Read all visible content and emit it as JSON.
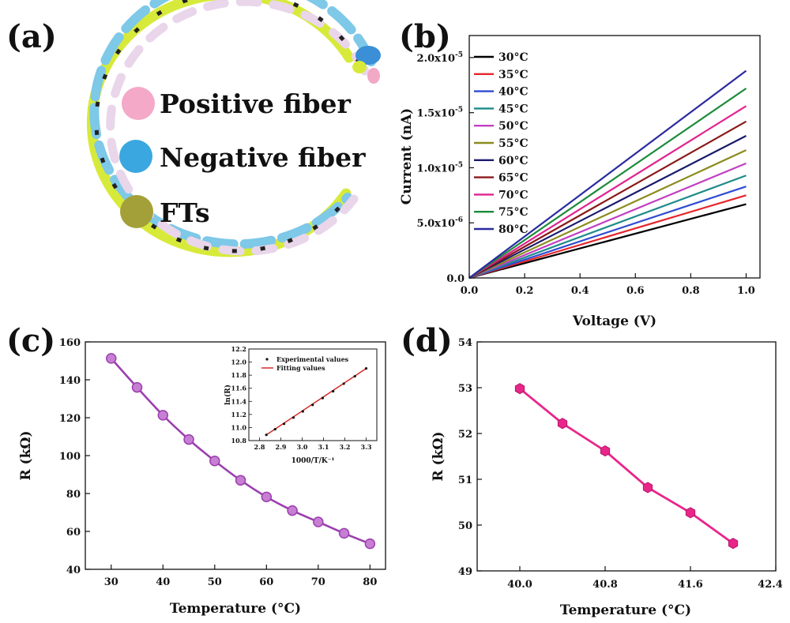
{
  "panel_labels": {
    "a": "(a)",
    "b": "(b)",
    "c": "(c)",
    "d": "(d)"
  },
  "illustration": {
    "legend": [
      {
        "label": "Positive fiber",
        "color": "#ea4f9c",
        "dot": "#f4a9c8"
      },
      {
        "label": "Negative fiber",
        "color": "#6a5fb0",
        "dot": "#3aa7e0"
      },
      {
        "label": "FTs",
        "color": "#c9d62e",
        "dot": "#a4a039"
      }
    ],
    "fiber_colors": {
      "positive": "#e9d6ea",
      "negative": "#7ec8e8",
      "fts": "#d7ea3a"
    }
  },
  "chart_data": [
    {
      "id": "b",
      "type": "line",
      "xlabel": "Voltage (V)",
      "ylabel": "Current (nA)",
      "xlim": [
        0,
        1.05
      ],
      "ylim": [
        0,
        2.2e-05
      ],
      "xticks": [
        0.0,
        0.2,
        0.4,
        0.6,
        0.8,
        1.0
      ],
      "xtick_labels": [
        "0.0",
        "0.2",
        "0.4",
        "0.6",
        "0.8",
        "1.0"
      ],
      "yticks": [
        0,
        5e-06,
        1e-05,
        1.5e-05,
        2e-05
      ],
      "ytick_labels": [
        {
          "m": "0.0",
          "e": ""
        },
        {
          "m": "5.0x10",
          "e": "-6"
        },
        {
          "m": "1.0x10",
          "e": "-5"
        },
        {
          "m": "1.5x10",
          "e": "-5"
        },
        {
          "m": "2.0x10",
          "e": "-5"
        }
      ],
      "legend_position": "top-left",
      "x": [
        0,
        1.0
      ],
      "series": [
        {
          "name": "30°C",
          "color": "#000000",
          "values": [
            0,
            6.7e-06
          ]
        },
        {
          "name": "35°C",
          "color": "#e5262a",
          "values": [
            0,
            7.5e-06
          ]
        },
        {
          "name": "40°C",
          "color": "#2f4bd1",
          "values": [
            0,
            8.3e-06
          ]
        },
        {
          "name": "45°C",
          "color": "#1e8b8b",
          "values": [
            0,
            9.3e-06
          ]
        },
        {
          "name": "50°C",
          "color": "#c13fc2",
          "values": [
            0,
            1.04e-05
          ]
        },
        {
          "name": "55°C",
          "color": "#8b8b1e",
          "values": [
            0,
            1.16e-05
          ]
        },
        {
          "name": "60°C",
          "color": "#1a1a6e",
          "values": [
            0,
            1.29e-05
          ]
        },
        {
          "name": "65°C",
          "color": "#8b1a1a",
          "values": [
            0,
            1.42e-05
          ]
        },
        {
          "name": "70°C",
          "color": "#e0238f",
          "values": [
            0,
            1.56e-05
          ]
        },
        {
          "name": "75°C",
          "color": "#1a8b3a",
          "values": [
            0,
            1.72e-05
          ]
        },
        {
          "name": "80°C",
          "color": "#2a2aa0",
          "values": [
            0,
            1.88e-05
          ]
        }
      ]
    },
    {
      "id": "c",
      "type": "line",
      "xlabel": "Temperature (°C)",
      "ylabel": "R (kΩ)",
      "xlim": [
        25,
        83
      ],
      "ylim": [
        40,
        160
      ],
      "xticks": [
        30,
        40,
        50,
        60,
        70,
        80
      ],
      "yticks": [
        40,
        60,
        80,
        100,
        120,
        140,
        160
      ],
      "color": "#9b3fae",
      "marker_color": "#c77fd4",
      "x": [
        30,
        35,
        40,
        45,
        50,
        55,
        60,
        65,
        70,
        75,
        80
      ],
      "values": [
        151.3,
        136.0,
        121.3,
        108.5,
        97.2,
        87.0,
        78.2,
        71.0,
        65.0,
        59.0,
        53.5
      ],
      "inset": {
        "type": "scatter",
        "xlabel": "1000/T/K⁻¹",
        "ylabel": "ln(R)",
        "xlim": [
          2.75,
          3.35
        ],
        "ylim": [
          10.8,
          12.2
        ],
        "xticks": [
          2.8,
          2.9,
          3.0,
          3.1,
          3.2,
          3.3
        ],
        "yticks": [
          10.8,
          11.0,
          11.2,
          11.4,
          11.6,
          11.8,
          12.0,
          12.2
        ],
        "legend": [
          "Experimental values",
          "Fitting values"
        ],
        "fit_color": "#d42a2a",
        "x": [
          2.832,
          2.873,
          2.915,
          2.959,
          3.003,
          3.049,
          3.096,
          3.145,
          3.195,
          3.247,
          3.3
        ],
        "values": [
          10.888,
          10.974,
          11.056,
          11.152,
          11.247,
          11.346,
          11.45,
          11.554,
          11.67,
          11.783,
          11.903
        ]
      }
    },
    {
      "id": "d",
      "type": "line",
      "xlabel": "Temperature (°C)",
      "ylabel": "R (kΩ)",
      "xlim": [
        39.6,
        42.4
      ],
      "ylim": [
        49,
        54
      ],
      "xticks": [
        40.0,
        40.8,
        41.6,
        42.4
      ],
      "xtick_labels": [
        "40.0",
        "40.8",
        "41.6",
        "42.4"
      ],
      "yticks": [
        49,
        50,
        51,
        52,
        53,
        54
      ],
      "color": "#e8268a",
      "x": [
        40.0,
        40.4,
        40.8,
        41.2,
        41.6,
        42.0
      ],
      "values": [
        52.98,
        52.22,
        51.62,
        50.82,
        50.27,
        49.6
      ]
    }
  ]
}
